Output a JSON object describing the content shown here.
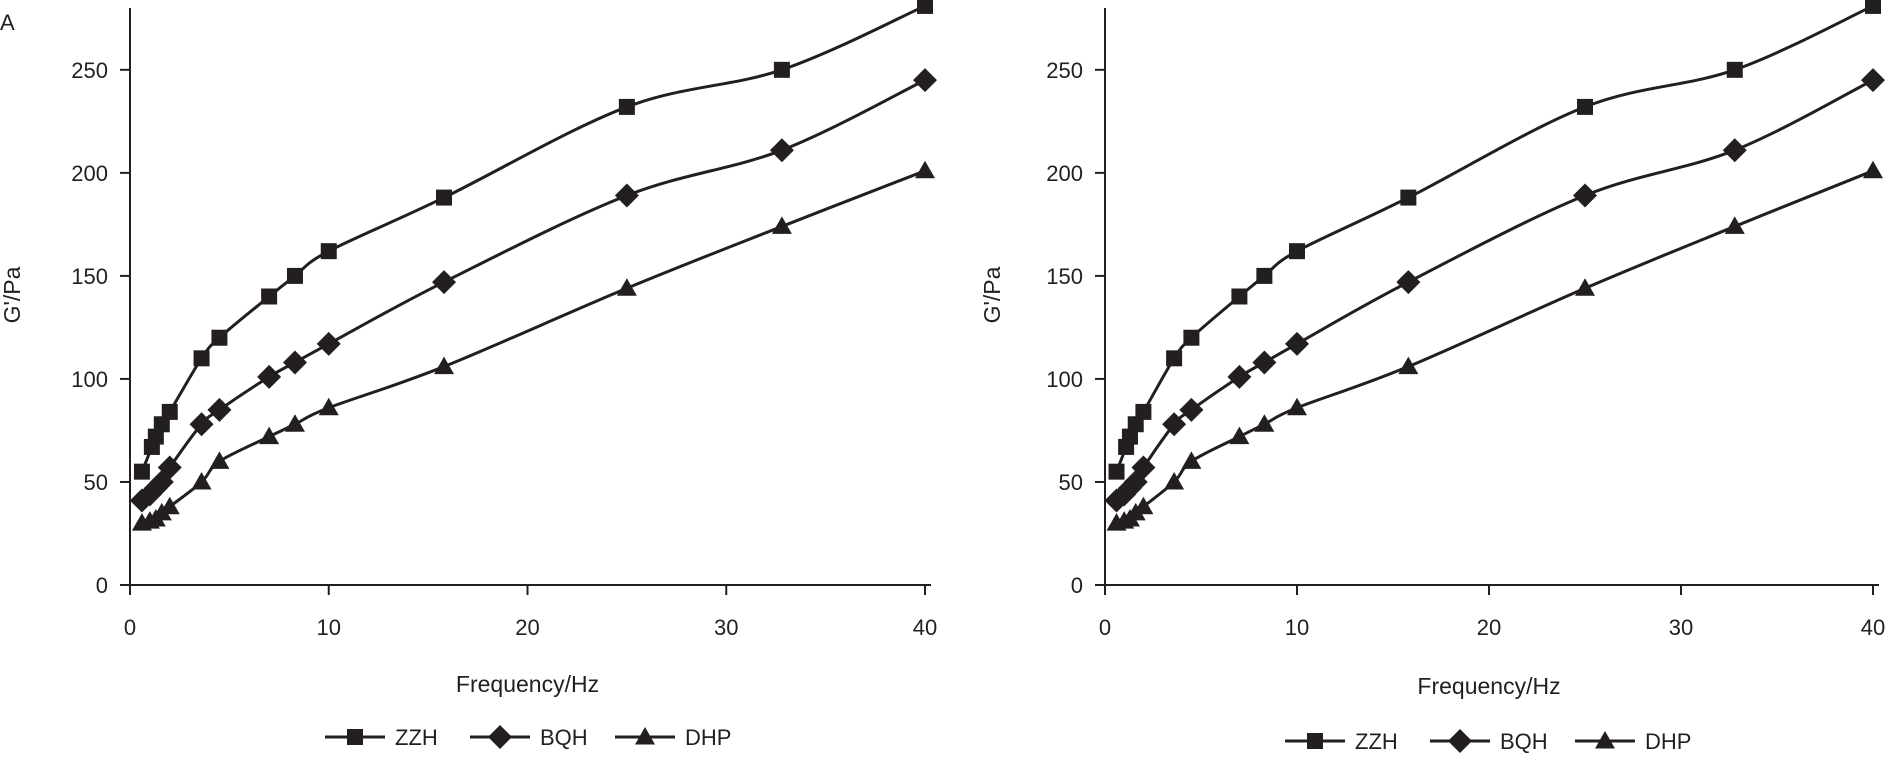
{
  "chart_data": [
    {
      "panel_label": "A",
      "type": "line",
      "title": "",
      "xlabel": "Frequency/Hz",
      "ylabel": "G'/Pa",
      "xlim": [
        0,
        40
      ],
      "ylim": [
        0,
        280
      ],
      "xticks": [
        0,
        10,
        20,
        30,
        40
      ],
      "yticks": [
        0,
        50,
        100,
        150,
        200,
        250
      ],
      "grid": false,
      "legend_position": "bottom",
      "series": [
        {
          "name": "ZZH",
          "marker": "square",
          "x": [
            0.6,
            1.1,
            1.3,
            1.6,
            2.0,
            3.6,
            4.5,
            7.0,
            8.3,
            10.0,
            15.8,
            25.0,
            32.8,
            40.0
          ],
          "y": [
            55,
            67,
            72,
            78,
            84,
            110,
            120,
            140,
            150,
            162,
            188,
            232,
            250,
            281
          ]
        },
        {
          "name": "BQH",
          "marker": "diamond",
          "x": [
            0.6,
            1.0,
            1.3,
            1.6,
            2.0,
            3.6,
            4.5,
            7.0,
            8.3,
            10.0,
            15.8,
            25.0,
            32.8,
            40.0
          ],
          "y": [
            41,
            44,
            47,
            50,
            57,
            78,
            85,
            101,
            108,
            117,
            147,
            189,
            211,
            245
          ]
        },
        {
          "name": "DHP",
          "marker": "triangle",
          "x": [
            0.6,
            1.0,
            1.3,
            1.6,
            2.0,
            3.6,
            4.5,
            7.0,
            8.3,
            10.0,
            15.8,
            25.0,
            32.8,
            40.0
          ],
          "y": [
            30,
            31,
            32,
            35,
            38,
            50,
            60,
            72,
            78,
            86,
            106,
            144,
            174,
            201
          ]
        }
      ]
    },
    {
      "panel_label": "",
      "type": "line",
      "title": "",
      "xlabel": "Frequency/Hz",
      "ylabel": "G'/Pa",
      "xlim": [
        0,
        40
      ],
      "ylim": [
        0,
        280
      ],
      "xticks": [
        0,
        10,
        20,
        30,
        40
      ],
      "yticks": [
        0,
        50,
        100,
        150,
        200,
        250
      ],
      "grid": false,
      "legend_position": "bottom",
      "series": [
        {
          "name": "ZZH",
          "marker": "square",
          "x": [
            0.6,
            1.1,
            1.3,
            1.6,
            2.0,
            3.6,
            4.5,
            7.0,
            8.3,
            10.0,
            15.8,
            25.0,
            32.8,
            40.0
          ],
          "y": [
            55,
            67,
            72,
            78,
            84,
            110,
            120,
            140,
            150,
            162,
            188,
            232,
            250,
            281
          ]
        },
        {
          "name": "BQH",
          "marker": "diamond",
          "x": [
            0.6,
            1.0,
            1.3,
            1.6,
            2.0,
            3.6,
            4.5,
            7.0,
            8.3,
            10.0,
            15.8,
            25.0,
            32.8,
            40.0
          ],
          "y": [
            41,
            44,
            47,
            50,
            57,
            78,
            85,
            101,
            108,
            117,
            147,
            189,
            211,
            245
          ]
        },
        {
          "name": "DHP",
          "marker": "triangle",
          "x": [
            0.6,
            1.0,
            1.3,
            1.6,
            2.0,
            3.6,
            4.5,
            7.0,
            8.3,
            10.0,
            15.8,
            25.0,
            32.8,
            40.0
          ],
          "y": [
            30,
            31,
            32,
            35,
            38,
            50,
            60,
            72,
            78,
            86,
            106,
            144,
            174,
            201
          ]
        }
      ]
    }
  ],
  "colors": {
    "ink": "#231f20",
    "background": "#ffffff"
  }
}
